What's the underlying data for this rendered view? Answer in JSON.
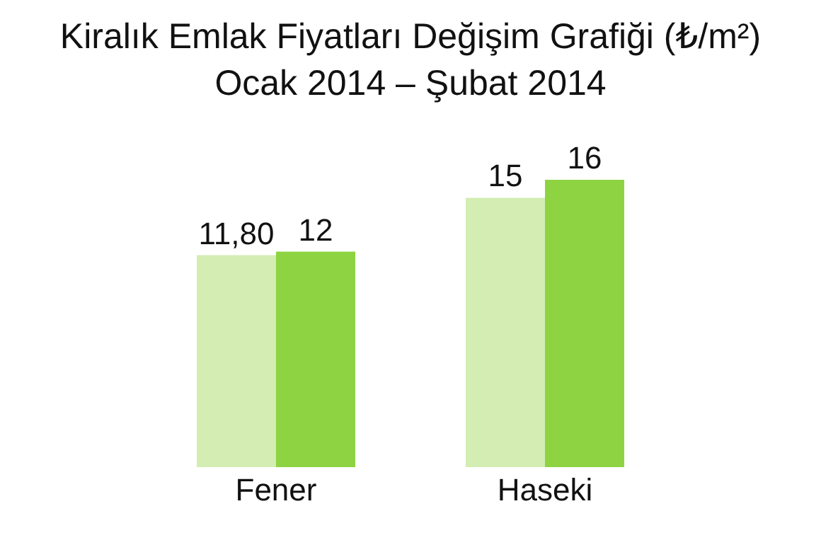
{
  "chart_data": {
    "type": "bar",
    "title": "Kiralık Emlak Fiyatları Değişim Grafiği (₺/m²)",
    "subtitle": "Ocak 2014 – Şubat 2014",
    "categories": [
      "Fener",
      "Haseki"
    ],
    "series": [
      {
        "color": "#d3edb3",
        "values": [
          11.8,
          15
        ],
        "value_labels": [
          "11,80",
          "15"
        ]
      },
      {
        "color": "#8ed442",
        "values": [
          12,
          16
        ],
        "value_labels": [
          "12",
          "16"
        ]
      }
    ],
    "grid": false,
    "legend": false
  }
}
